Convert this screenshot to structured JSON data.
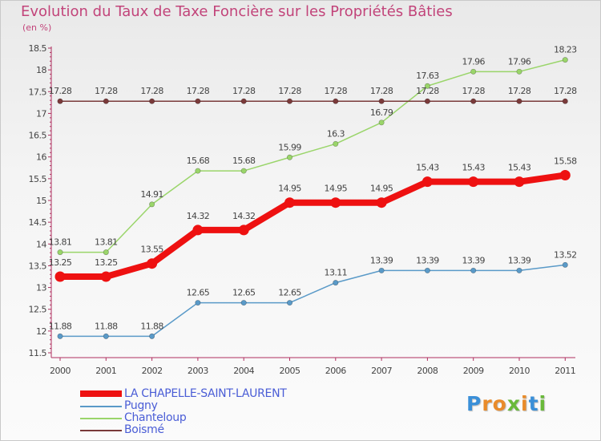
{
  "title": "Evolution du Taux de Taxe Foncière sur les Propriétés Bâties",
  "unit": "(en %)",
  "logo": {
    "letters": [
      "P",
      "r",
      "o",
      "x",
      "i",
      "t",
      "i"
    ],
    "colors": [
      "#3a8fd8",
      "#e98b2a",
      "#e98b2a",
      "#69b93a",
      "#e98b2a",
      "#3a8fd8",
      "#69b93a"
    ]
  },
  "chart_data": {
    "type": "line",
    "title": "Evolution du Taux de Taxe Foncière sur les Propriétés Bâties",
    "ylabel": "(en %)",
    "xlabel": "",
    "x": [
      "2000",
      "2001",
      "2002",
      "2003",
      "2004",
      "2005",
      "2006",
      "2007",
      "2008",
      "2009",
      "2010",
      "2011"
    ],
    "ylim": [
      11.5,
      18.5
    ],
    "yticks": [
      "11.5",
      "12",
      "12.5",
      "13",
      "13.5",
      "14",
      "14.5",
      "15",
      "15.5",
      "16",
      "16.5",
      "17",
      "17.5",
      "18",
      "18.5"
    ],
    "grid": false,
    "legend_position": "bottom-left",
    "series": [
      {
        "name": "LA CHAPELLE-SAINT-LAURENT",
        "color": "#ee1111",
        "emphasis": true,
        "values": [
          13.25,
          13.25,
          13.55,
          14.32,
          14.32,
          14.95,
          14.95,
          14.95,
          15.43,
          15.43,
          15.43,
          15.58
        ],
        "labels": [
          "13.25",
          "13.25",
          "13.55",
          "14.32",
          "14.32",
          "14.95",
          "14.95",
          "14.95",
          "15.43",
          "15.43",
          "15.43",
          "15.58"
        ]
      },
      {
        "name": "Pugny",
        "color": "#5a9ac8",
        "emphasis": false,
        "values": [
          11.88,
          11.88,
          11.88,
          12.65,
          12.65,
          12.65,
          13.11,
          13.39,
          13.39,
          13.39,
          13.39,
          13.52
        ],
        "labels": [
          "11.88",
          "11.88",
          "11.88",
          "12.65",
          "12.65",
          "12.65",
          "13.11",
          "13.39",
          "13.39",
          "13.39",
          "13.39",
          "13.52"
        ]
      },
      {
        "name": "Chanteloup",
        "color": "#9ad56a",
        "emphasis": false,
        "values": [
          13.81,
          13.81,
          14.91,
          15.68,
          15.68,
          15.99,
          16.3,
          16.79,
          17.63,
          17.96,
          17.96,
          18.23
        ],
        "labels": [
          "13.81",
          "13.81",
          "14.91",
          "15.68",
          "15.68",
          "15.99",
          "16.3",
          "16.79",
          "17.63",
          "17.96",
          "17.96",
          "18.23"
        ]
      },
      {
        "name": "Boismé",
        "color": "#7a3a3a",
        "emphasis": false,
        "values": [
          17.28,
          17.28,
          17.28,
          17.28,
          17.28,
          17.28,
          17.28,
          17.28,
          17.28,
          17.28,
          17.28,
          17.28
        ],
        "labels": [
          "17.28",
          "17.28",
          "17.28",
          "17.28",
          "17.28",
          "17.28",
          "17.28",
          "17.28",
          "17.28",
          "17.28",
          "17.28",
          "17.28"
        ]
      }
    ]
  }
}
